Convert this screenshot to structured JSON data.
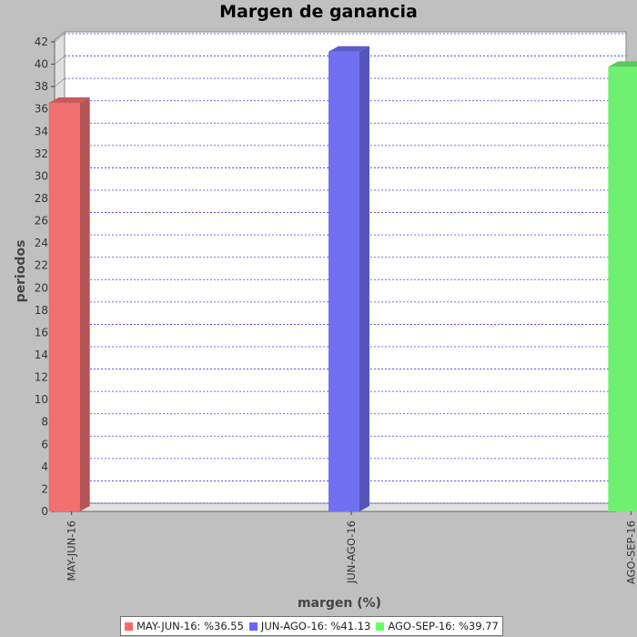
{
  "chart_data": {
    "type": "bar",
    "title": "Margen de ganancia",
    "xlabel": "margen (%)",
    "ylabel": "periodos",
    "categories": [
      "MAY-JUN-16",
      "JUN-AGO-16",
      "AGO-SEP-16"
    ],
    "values": [
      36.55,
      41.13,
      39.77
    ],
    "ylim": [
      0,
      42
    ],
    "yticks": [
      0,
      2,
      4,
      6,
      8,
      10,
      12,
      14,
      16,
      18,
      20,
      22,
      24,
      26,
      28,
      30,
      32,
      34,
      36,
      38,
      40,
      42
    ],
    "grid": true,
    "legend_position": "bottom",
    "legend": [
      {
        "label": "MAY-JUN-16: %36.55",
        "color": "#ff6666"
      },
      {
        "label": "JUN-AGO-16: %41.13",
        "color": "#6666ff"
      },
      {
        "label": "AGO-SEP-16: %39.77",
        "color": "#66ff66"
      }
    ],
    "colors": [
      "#f07070",
      "#7070f0",
      "#70f070"
    ],
    "side_colors": [
      "#b45454",
      "#5656b8",
      "#54b454"
    ],
    "top_colors": [
      "#c85a5a",
      "#5c5cc8",
      "#5ac85a"
    ],
    "plot_background": "#ffffff",
    "grid_color": "#4040e0"
  }
}
